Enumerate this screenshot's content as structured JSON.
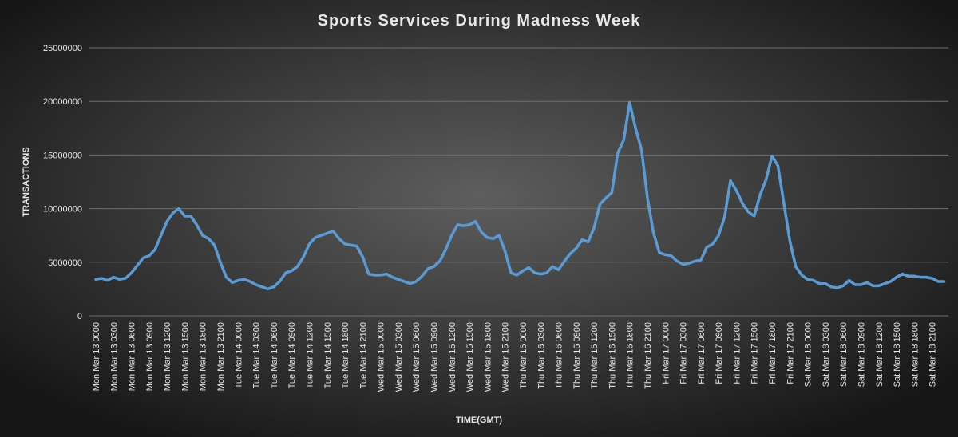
{
  "chart_data": {
    "type": "line",
    "title": "Sports Services During Madness Week",
    "xlabel": "TIME(GMT)",
    "ylabel": "TRANSACTIONS",
    "categories": [
      "Mon Mar 13 0000",
      null,
      null,
      "Mon Mar 13 0300",
      null,
      null,
      "Mon Mar 13 0600",
      null,
      null,
      "Mon Mar 13 0900",
      null,
      null,
      "Mon Mar 13 1200",
      null,
      null,
      "Mon Mar 13 1500",
      null,
      null,
      "Mon Mar 13 1800",
      null,
      null,
      "Mon Mar 13 2100",
      null,
      null,
      "Tue Mar 14 0000",
      null,
      null,
      "Tue Mar 14 0300",
      null,
      null,
      "Tue Mar 14 0600",
      null,
      null,
      "Tue Mar 14 0900",
      null,
      null,
      "Tue Mar 14 1200",
      null,
      null,
      "Tue Mar 14 1500",
      null,
      null,
      "Tue Mar 14 1800",
      null,
      null,
      "Tue Mar 14 2100",
      null,
      null,
      "Wed Mar 15 0000",
      null,
      null,
      "Wed Mar 15 0300",
      null,
      null,
      "Wed Mar 15 0600",
      null,
      null,
      "Wed Mar 15 0900",
      null,
      null,
      "Wed Mar 15 1200",
      null,
      null,
      "Wed Mar 15 1500",
      null,
      null,
      "Wed Mar 15 1800",
      null,
      null,
      "Wed Mar 15 2100",
      null,
      null,
      "Thu Mar 16 0000",
      null,
      null,
      "Thu Mar 16 0300",
      null,
      null,
      "Thu Mar 16 0600",
      null,
      null,
      "Thu Mar 16 0900",
      null,
      null,
      "Thu Mar 16 1200",
      null,
      null,
      "Thu Mar 16 1500",
      null,
      null,
      "Thu Mar 16 1800",
      null,
      null,
      "Thu Mar 16 2100",
      null,
      null,
      "Fri Mar 17 0000",
      null,
      null,
      "Fri Mar 17 0300",
      null,
      null,
      "Fri Mar 17 0600",
      null,
      null,
      "Fri Mar 17 0900",
      null,
      null,
      "Fri Mar 17 1200",
      null,
      null,
      "Fri Mar 17 1500",
      null,
      null,
      "Fri Mar 17 1800",
      null,
      null,
      "Fri Mar 17 2100",
      null,
      null,
      "Sat Mar 18 0000",
      null,
      null,
      "Sat Mar 18 0300",
      null,
      null,
      "Sat Mar 18 0600",
      null,
      null,
      "Sat Mar 18 0900",
      null,
      null,
      "Sat Mar 18 1200",
      null,
      null,
      "Sat Mar 18 1500",
      null,
      null,
      "Sat Mar 18 1800",
      null,
      null,
      "Sat Mar 18 2100",
      null,
      null
    ],
    "series": [
      {
        "name": "TRANSACTIONS",
        "color": "#5b9bd5",
        "values": [
          3400000,
          3500000,
          3300000,
          3600000,
          3400000,
          3500000,
          4000000,
          4700000,
          5400000,
          5600000,
          6200000,
          7500000,
          8800000,
          9600000,
          10000000,
          9300000,
          9300000,
          8500000,
          7500000,
          7200000,
          6600000,
          5000000,
          3600000,
          3100000,
          3300000,
          3400000,
          3200000,
          2900000,
          2700000,
          2500000,
          2700000,
          3200000,
          4000000,
          4200000,
          4600000,
          5500000,
          6700000,
          7300000,
          7500000,
          7700000,
          7900000,
          7200000,
          6700000,
          6600000,
          6500000,
          5500000,
          3900000,
          3800000,
          3800000,
          3900000,
          3600000,
          3400000,
          3200000,
          3000000,
          3200000,
          3700000,
          4400000,
          4600000,
          5100000,
          6200000,
          7500000,
          8500000,
          8400000,
          8500000,
          8800000,
          7800000,
          7300000,
          7200000,
          7500000,
          6000000,
          4000000,
          3800000,
          4200000,
          4500000,
          4000000,
          3900000,
          4000000,
          4600000,
          4300000,
          5100000,
          5800000,
          6300000,
          7100000,
          6900000,
          8200000,
          10400000,
          11000000,
          11500000,
          15200000,
          16400000,
          19900000,
          17500000,
          15500000,
          11000000,
          7800000,
          5900000,
          5700000,
          5600000,
          5100000,
          4800000,
          4900000,
          5100000,
          5200000,
          6400000,
          6700000,
          7500000,
          9200000,
          12600000,
          11700000,
          10500000,
          9700000,
          9300000,
          11300000,
          12700000,
          14900000,
          14000000,
          10500000,
          7000000,
          4600000,
          3800000,
          3400000,
          3300000,
          3000000,
          3000000,
          2700000,
          2600000,
          2800000,
          3300000,
          2900000,
          2900000,
          3100000,
          2800000,
          2800000,
          3000000,
          3200000,
          3600000,
          3900000,
          3700000,
          3700000,
          3600000,
          3600000,
          3500000,
          3200000,
          3200000
        ]
      }
    ],
    "ylim": [
      0,
      25000000
    ],
    "yticks": [
      0,
      5000000,
      10000000,
      15000000,
      20000000,
      25000000
    ],
    "grid": true
  }
}
